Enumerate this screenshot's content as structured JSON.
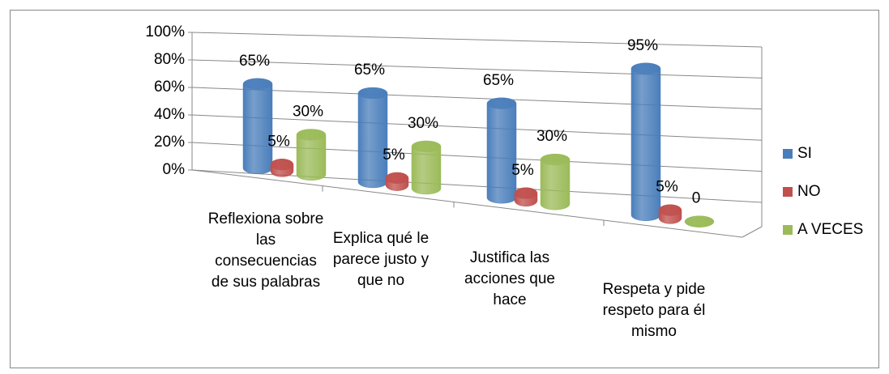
{
  "chart_data": {
    "type": "bar3d",
    "categories": [
      "Reflexiona sobre las consecuencias de sus palabras",
      "Explica qué le parece justo y que no",
      "Justifica las acciones que hace",
      "Respeta y pide respeto para él mismo"
    ],
    "series": [
      {
        "name": "SI",
        "color": "#4a7ebb",
        "values": [
          65,
          65,
          65,
          95
        ],
        "value_labels": [
          "65%",
          "65%",
          "65%",
          "95%"
        ]
      },
      {
        "name": "NO",
        "color": "#c0504d",
        "values": [
          5,
          5,
          5,
          5
        ],
        "value_labels": [
          "5%",
          "5%",
          "5%",
          "5%"
        ]
      },
      {
        "name": "A VECES",
        "color": "#9bbb59",
        "values": [
          30,
          30,
          30,
          0
        ],
        "value_labels": [
          "30%",
          "30%",
          "30%",
          "0"
        ]
      }
    ],
    "ylim": [
      0,
      100
    ],
    "yticks": [
      {
        "value": 0,
        "label": "0%"
      },
      {
        "value": 20,
        "label": "20%"
      },
      {
        "value": 40,
        "label": "40%"
      },
      {
        "value": 60,
        "label": "60%"
      },
      {
        "value": 80,
        "label": "80%"
      },
      {
        "value": 100,
        "label": "100%"
      }
    ],
    "grid": true,
    "legend": "right"
  }
}
